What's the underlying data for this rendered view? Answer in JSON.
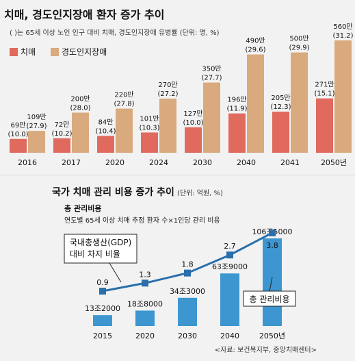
{
  "chart_data": [
    {
      "type": "bar",
      "title": "치매, 경도인지장애 환자 증가 추이",
      "note": "(   )는 65세 이상 노인 인구 대비 치매, 경도인지장애 유병률 (단위: 명, %)",
      "categories": [
        "2016",
        "2017",
        "2020",
        "2024",
        "2030",
        "2040",
        "2041",
        "2050년"
      ],
      "ylim": [
        0,
        560
      ],
      "series": [
        {
          "name": "치매",
          "color": "#e06a5e",
          "values": [
            69,
            72,
            84,
            101,
            127,
            196,
            205,
            271
          ],
          "value_labels": [
            "69만",
            "72만",
            "84만",
            "101만",
            "127만",
            "196만",
            "205만",
            "271만"
          ],
          "rate_labels": [
            "(10.0)",
            "(10.2)",
            "(10.4)",
            "(10.3)",
            "(10.0)",
            "(11.9)",
            "(12.3)",
            "(15.1)"
          ]
        },
        {
          "name": "경도인지장애",
          "color": "#d9aa7e",
          "values": [
            109,
            200,
            220,
            270,
            350,
            490,
            500,
            560
          ],
          "value_labels": [
            "109만",
            "200만",
            "220만",
            "270만",
            "350만",
            "490만",
            "500만",
            "560만"
          ],
          "rate_labels": [
            "(27.9)",
            "(28.0)",
            "(27.8)",
            "(27.2)",
            "(27.7)",
            "(29.6)",
            "(29.9)",
            "(31.2)"
          ]
        }
      ]
    },
    {
      "type": "bar",
      "title": "국가 치매 관리 비용 증가 추이",
      "unit": "(단위: 억원, %)",
      "subtitle": "총 관리비용",
      "subtitle2": "연도별 65세 이상 치매 추정 환자 수×1인당 관리 비용",
      "categories": [
        "2015",
        "2020",
        "2030",
        "2040",
        "2050년"
      ],
      "series": [
        {
          "name": "총 관리비용",
          "color": "#3d96d0",
          "values": [
            132000,
            188000,
            343000,
            639000,
            1065000
          ],
          "value_labels": [
            "13조2000",
            "18조8000",
            "34조3000",
            "63조9000",
            "106조5000"
          ]
        },
        {
          "name": "국내총생산(GDP) 대비 차지 비율",
          "type": "line",
          "color": "#2a6fab",
          "values": [
            0.9,
            1.3,
            1.8,
            2.7,
            3.8
          ],
          "value_labels": [
            "0.9",
            "1.3",
            "1.8",
            "2.7",
            "3.8"
          ]
        }
      ],
      "callout_gdp": "국내총생산(GDP)\n대비 차지 비율",
      "callout_cost": "총 관리비용",
      "source": "<자료: 보건복지부, 중앙치매센터>"
    }
  ]
}
